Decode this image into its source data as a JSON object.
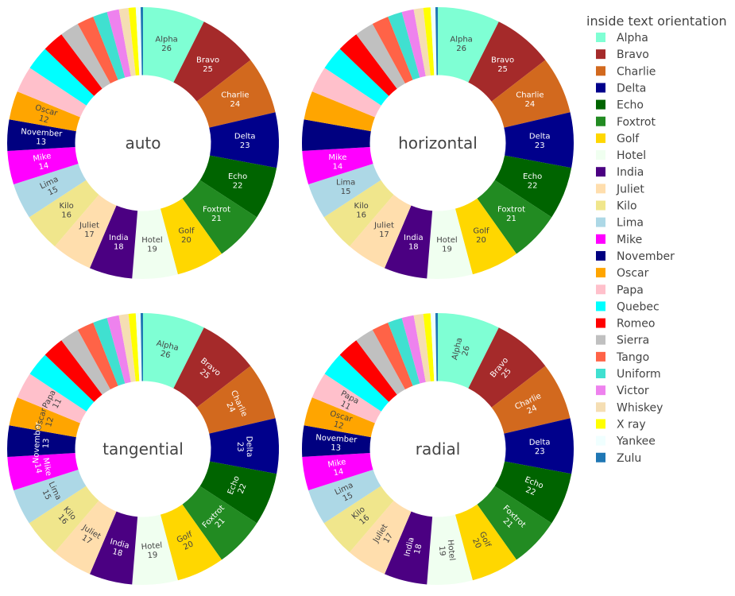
{
  "chart_data": {
    "type": "pie",
    "hole": 0.5,
    "legend": {
      "title": "inside text orientation",
      "placement": "right"
    },
    "labels": [
      "Alpha",
      "Bravo",
      "Charlie",
      "Delta",
      "Echo",
      "Foxtrot",
      "Golf",
      "Hotel",
      "India",
      "Juliet",
      "Kilo",
      "Lima",
      "Mike",
      "November",
      "Oscar",
      "Papa",
      "Quebec",
      "Romeo",
      "Sierra",
      "Tango",
      "Uniform",
      "Victor",
      "Whiskey",
      "X ray",
      "Yankee",
      "Zulu"
    ],
    "values": [
      26,
      25,
      24,
      23,
      22,
      21,
      20,
      19,
      18,
      17,
      16,
      15,
      14,
      13,
      12,
      11,
      10,
      9,
      8,
      7,
      6,
      5,
      4,
      3,
      2,
      1
    ],
    "colors": [
      "#7fffd4",
      "#a52a2a",
      "#d2691e",
      "#00008b",
      "#006400",
      "#228b22",
      "#ffd700",
      "#f0fff0",
      "#4b0082",
      "#ffdead",
      "#f0e68c",
      "#add8e6",
      "#ff00ff",
      "#000080",
      "#ffa500",
      "#ffc0cb",
      "#00ffff",
      "#ff0000",
      "#c0c0c0",
      "#ff6347",
      "#40e0d0",
      "#ee82ee",
      "#f5deb3",
      "#ffff00",
      "#f0ffff",
      "#1f77b4"
    ],
    "text_colors": [
      "#444444",
      "#ffffff",
      "#ffffff",
      "#ffffff",
      "#ffffff",
      "#ffffff",
      "#444444",
      "#444444",
      "#ffffff",
      "#444444",
      "#444444",
      "#444444",
      "#ffffff",
      "#ffffff",
      "#444444",
      "#444444",
      "#444444",
      "#ffffff",
      "#444444",
      "#ffffff",
      "#444444",
      "#444444",
      "#444444",
      "#444444",
      "#444444",
      "#ffffff"
    ],
    "charts": [
      {
        "orientation": "auto",
        "label": "auto",
        "labeled_count": 15,
        "rotated_from": 11
      },
      {
        "orientation": "horizontal",
        "label": "horizontal",
        "labeled_count": 13,
        "rotated_from": 99
      },
      {
        "orientation": "tangential",
        "label": "tangential",
        "labeled_count": 16,
        "rotated_from": 0
      },
      {
        "orientation": "radial",
        "label": "radial",
        "labeled_count": 16,
        "rotated_from": 0
      }
    ]
  }
}
